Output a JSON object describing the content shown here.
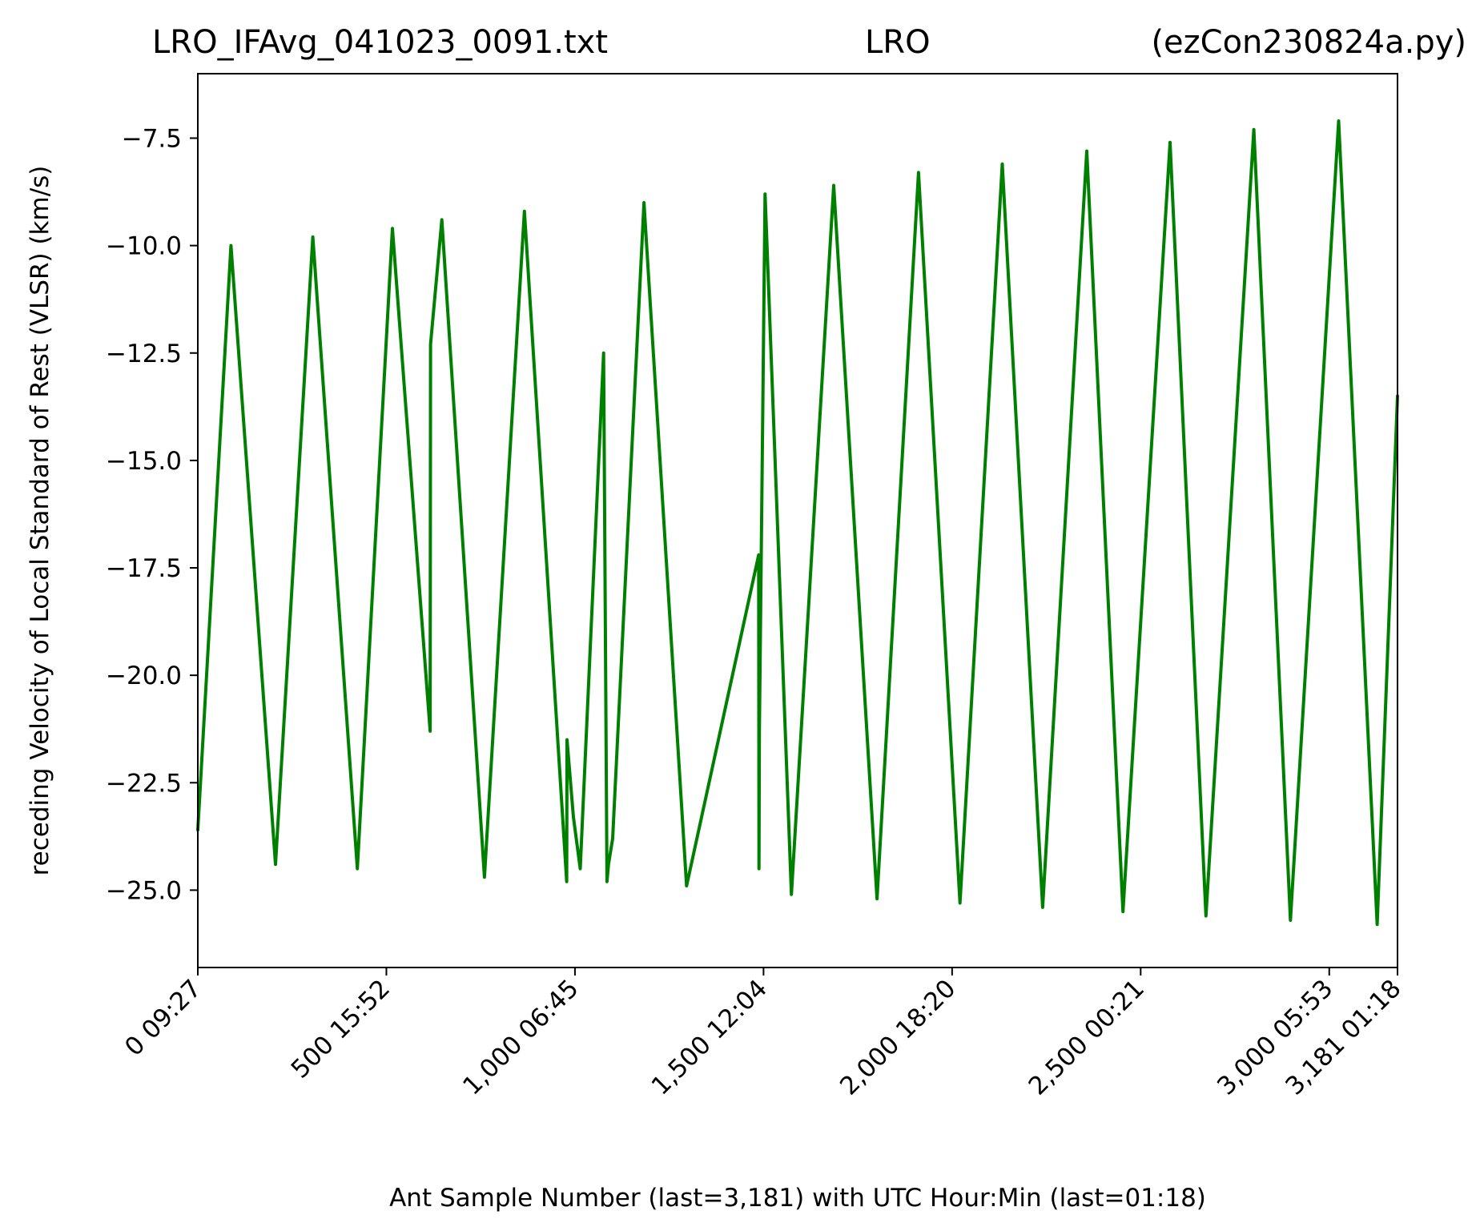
{
  "chart_data": {
    "type": "line",
    "title_parts": [
      "LRO_IFAvg_041023_0091.txt",
      "LRO",
      "(ezCon230824a.py)"
    ],
    "xlabel": "Ant Sample Number (last=3,181) with UTC Hour:Min (last=01:18)",
    "ylabel": "receding Velocity of Local Standard of Rest (VLSR) (km/s)",
    "xlim": [
      0,
      3181
    ],
    "ylim": [
      -26.8,
      -6.0
    ],
    "grid": false,
    "line_color": "#008000",
    "x_ticks": [
      {
        "value": 0,
        "label": "0  09:27"
      },
      {
        "value": 500,
        "label": "500  15:52"
      },
      {
        "value": 1000,
        "label": "1,000  06:45"
      },
      {
        "value": 1500,
        "label": "1,500  12:04"
      },
      {
        "value": 2000,
        "label": "2,000  18:20"
      },
      {
        "value": 2500,
        "label": "2,500  00:21"
      },
      {
        "value": 3000,
        "label": "3,000  05:53"
      },
      {
        "value": 3181,
        "label": "3,181  01:18"
      }
    ],
    "y_ticks": [
      {
        "value": -7.5,
        "label": "−7.5"
      },
      {
        "value": -10.0,
        "label": "−10.0"
      },
      {
        "value": -12.5,
        "label": "−12.5"
      },
      {
        "value": -15.0,
        "label": "−15.0"
      },
      {
        "value": -17.5,
        "label": "−17.5"
      },
      {
        "value": -20.0,
        "label": "−20.0"
      },
      {
        "value": -22.5,
        "label": "−22.5"
      },
      {
        "value": -25.0,
        "label": "−25.0"
      }
    ],
    "series": [
      {
        "x": [
          0,
          88,
          206,
          305,
          423,
          516,
          616,
          617,
          647,
          760,
          866,
          978,
          979,
          996,
          1014,
          1076,
          1085,
          1089,
          1100,
          1183,
          1296,
          1487,
          1488,
          1489,
          1504,
          1574,
          1686,
          1801,
          1911,
          2021,
          2133,
          2240,
          2357,
          2453,
          2578,
          2673,
          2800,
          2897,
          3025,
          3127,
          3181
        ],
        "y": [
          -23.6,
          -10.0,
          -24.4,
          -9.8,
          -24.5,
          -9.6,
          -21.3,
          -12.3,
          -9.4,
          -24.7,
          -9.2,
          -24.8,
          -21.5,
          -23.3,
          -24.5,
          -12.5,
          -24.8,
          -24.4,
          -23.8,
          -9.0,
          -24.9,
          -17.2,
          -24.5,
          -21.3,
          -8.8,
          -25.1,
          -8.6,
          -25.2,
          -8.3,
          -25.3,
          -8.1,
          -25.4,
          -7.8,
          -25.5,
          -7.6,
          -25.6,
          -7.3,
          -25.7,
          -7.1,
          -25.8,
          -13.5
        ]
      }
    ]
  }
}
